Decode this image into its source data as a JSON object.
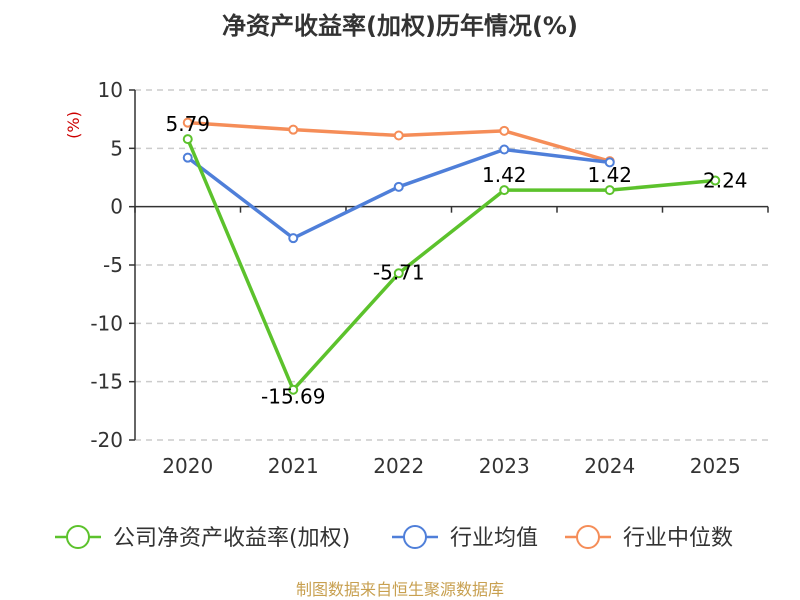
{
  "colors": {
    "company": "#5cc22c",
    "average": "#4f7fd9",
    "median": "#f58d58",
    "unit": "#cc0000",
    "footer": "#c8a050"
  },
  "legend": [
    {
      "label": "公司净资产收益率(加权)",
      "series": "company"
    },
    {
      "label": "行业均值",
      "series": "average"
    },
    {
      "label": "行业中位数",
      "series": "median"
    }
  ],
  "footer": "制图数据来自恒生聚源数据库",
  "chart_data": {
    "type": "line",
    "title": "净资产收益率(加权)历年情况(%)",
    "ylabel": "(%)",
    "xlabel": "",
    "categories": [
      "2020",
      "2021",
      "2022",
      "2023",
      "2024",
      "2025"
    ],
    "ylim": [
      -20,
      10
    ],
    "yticks": [
      10,
      5,
      0,
      -5,
      -10,
      -15,
      -20
    ],
    "grid": true,
    "legend_position": "bottom",
    "series": [
      {
        "key": "company",
        "name": "公司净资产收益率(加权)",
        "values": [
          5.79,
          -15.69,
          -5.71,
          1.42,
          1.42,
          2.24
        ],
        "labels": [
          "5.79",
          "-15.69",
          "-5.71",
          "1.42",
          "1.42",
          "2.24"
        ]
      },
      {
        "key": "average",
        "name": "行业均值",
        "values": [
          4.2,
          -2.7,
          1.7,
          4.9,
          3.8,
          null
        ]
      },
      {
        "key": "median",
        "name": "行业中位数",
        "values": [
          7.2,
          6.6,
          6.1,
          6.5,
          3.9,
          null
        ]
      }
    ]
  }
}
